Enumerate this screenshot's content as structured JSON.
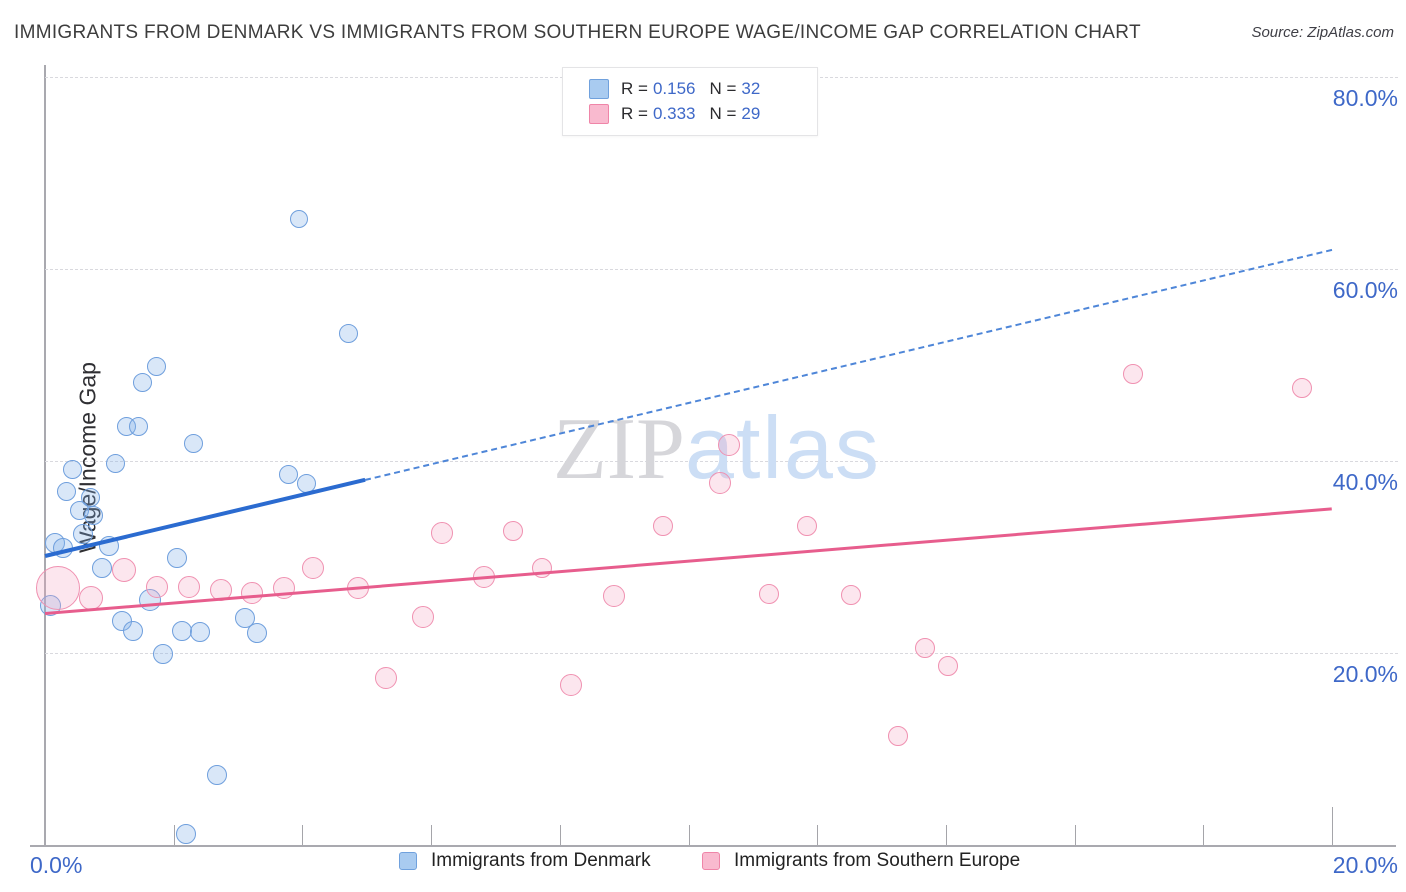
{
  "header": {
    "title": "IMMIGRANTS FROM DENMARK VS IMMIGRANTS FROM SOUTHERN EUROPE WAGE/INCOME GAP CORRELATION CHART",
    "source": "Source: ZipAtlas.com"
  },
  "watermark": {
    "zip": "ZIP",
    "atlas": "atlas"
  },
  "legend_box": {
    "rows": [
      {
        "r_label": "R =",
        "r_value": "0.156",
        "n_label": "N =",
        "n_value": "32",
        "swatch_fill": "#a9cbf0",
        "swatch_border": "#70a1dd"
      },
      {
        "r_label": "R =",
        "r_value": "0.333",
        "n_label": "N =",
        "n_value": "29",
        "swatch_fill": "#f9bacf",
        "swatch_border": "#ef85a8"
      }
    ]
  },
  "y_axis": {
    "title": "Wage/Income Gap",
    "tick_labels": [
      "80.0%",
      "60.0%",
      "40.0%",
      "20.0%"
    ],
    "tick_values": [
      80,
      60,
      40,
      20
    ],
    "label_color": "#3e68c8"
  },
  "x_axis": {
    "left_label": "0.0%",
    "right_label": "20.0%",
    "tick_values": [
      2,
      4,
      6,
      8,
      10,
      12,
      14,
      16,
      18,
      20
    ]
  },
  "bottom_legend": [
    {
      "label": "Immigrants from Denmark",
      "swatch_fill": "#a9cbf0",
      "swatch_border": "#70a1dd"
    },
    {
      "label": "Immigrants from Southern Europe",
      "swatch_fill": "#f9bacf",
      "swatch_border": "#ef85a8"
    }
  ],
  "chart_data": {
    "type": "scatter",
    "xlabel": "",
    "ylabel": "Wage/Income Gap",
    "xlim": [
      0,
      20
    ],
    "ylim": [
      0,
      81.25
    ],
    "grid": "horizontal-dashed",
    "legend_position": "top-center",
    "series": [
      {
        "name": "Immigrants from Denmark",
        "R": 0.156,
        "N": 32,
        "fill": "rgba(130,175,232,0.30)",
        "border": "#6f9fdd",
        "points": [
          {
            "x": 3.95,
            "y": 65.2,
            "r": 9
          },
          {
            "x": 4.71,
            "y": 53.3,
            "r": 9.5
          },
          {
            "x": 1.73,
            "y": 49.8,
            "r": 9.5
          },
          {
            "x": 1.52,
            "y": 48.2,
            "r": 9.5
          },
          {
            "x": 1.27,
            "y": 43.6,
            "r": 9.5
          },
          {
            "x": 1.46,
            "y": 43.6,
            "r": 9.5
          },
          {
            "x": 2.3,
            "y": 41.8,
            "r": 9.5
          },
          {
            "x": 1.09,
            "y": 39.7,
            "r": 9.5
          },
          {
            "x": 0.42,
            "y": 39.1,
            "r": 9.5
          },
          {
            "x": 3.78,
            "y": 38.6,
            "r": 9.5
          },
          {
            "x": 4.07,
            "y": 37.7,
            "r": 9.5
          },
          {
            "x": 0.33,
            "y": 36.8,
            "r": 9.5
          },
          {
            "x": 0.71,
            "y": 36.2,
            "r": 9.5
          },
          {
            "x": 0.54,
            "y": 34.8,
            "r": 9.5
          },
          {
            "x": 0.75,
            "y": 34.3,
            "r": 9.5
          },
          {
            "x": 0.59,
            "y": 32.4,
            "r": 10
          },
          {
            "x": 0.16,
            "y": 31.5,
            "r": 10
          },
          {
            "x": 0.28,
            "y": 30.9,
            "r": 10
          },
          {
            "x": 0.99,
            "y": 31.1,
            "r": 10
          },
          {
            "x": 0.89,
            "y": 28.9,
            "r": 10
          },
          {
            "x": 2.05,
            "y": 29.9,
            "r": 10
          },
          {
            "x": 0.08,
            "y": 25.0,
            "r": 10.5
          },
          {
            "x": 1.63,
            "y": 25.5,
            "r": 11
          },
          {
            "x": 1.2,
            "y": 23.3,
            "r": 10
          },
          {
            "x": 1.37,
            "y": 22.3,
            "r": 10
          },
          {
            "x": 2.13,
            "y": 22.3,
            "r": 10
          },
          {
            "x": 2.41,
            "y": 22.2,
            "r": 10
          },
          {
            "x": 1.83,
            "y": 19.9,
            "r": 10
          },
          {
            "x": 3.11,
            "y": 23.6,
            "r": 10
          },
          {
            "x": 3.3,
            "y": 22.1,
            "r": 10
          },
          {
            "x": 2.67,
            "y": 7.3,
            "r": 10
          },
          {
            "x": 2.19,
            "y": 1.1,
            "r": 10
          }
        ],
        "trend": {
          "x1": 0,
          "y1": 30.1,
          "x2": 20,
          "y2": 62.0,
          "solid_to_x": 4.97,
          "solid_color": "#2b6bd0",
          "dash_color": "#4e86d8"
        }
      },
      {
        "name": "Immigrants from Southern Europe",
        "R": 0.333,
        "N": 29,
        "fill": "rgba(246,164,195,0.28)",
        "border": "#f091b1",
        "points": [
          {
            "x": 0.2,
            "y": 26.8,
            "r": 22
          },
          {
            "x": 0.72,
            "y": 25.7,
            "r": 12
          },
          {
            "x": 1.23,
            "y": 28.6,
            "r": 12
          },
          {
            "x": 1.74,
            "y": 26.9,
            "r": 11
          },
          {
            "x": 2.24,
            "y": 26.9,
            "r": 11
          },
          {
            "x": 2.74,
            "y": 26.6,
            "r": 11
          },
          {
            "x": 3.22,
            "y": 26.3,
            "r": 11
          },
          {
            "x": 3.71,
            "y": 26.8,
            "r": 11
          },
          {
            "x": 4.17,
            "y": 28.9,
            "r": 11
          },
          {
            "x": 4.86,
            "y": 26.8,
            "r": 11
          },
          {
            "x": 5.87,
            "y": 23.8,
            "r": 11
          },
          {
            "x": 5.3,
            "y": 17.4,
            "r": 11
          },
          {
            "x": 6.17,
            "y": 32.5,
            "r": 11
          },
          {
            "x": 6.82,
            "y": 27.9,
            "r": 11
          },
          {
            "x": 7.27,
            "y": 32.7,
            "r": 10
          },
          {
            "x": 7.72,
            "y": 28.9,
            "r": 10
          },
          {
            "x": 8.17,
            "y": 16.7,
            "r": 11
          },
          {
            "x": 8.84,
            "y": 25.9,
            "r": 11
          },
          {
            "x": 9.6,
            "y": 33.2,
            "r": 10
          },
          {
            "x": 10.49,
            "y": 37.7,
            "r": 11
          },
          {
            "x": 10.63,
            "y": 41.7,
            "r": 11
          },
          {
            "x": 11.25,
            "y": 26.1,
            "r": 10
          },
          {
            "x": 11.84,
            "y": 33.2,
            "r": 10
          },
          {
            "x": 12.52,
            "y": 26.0,
            "r": 10
          },
          {
            "x": 13.67,
            "y": 20.5,
            "r": 10
          },
          {
            "x": 14.03,
            "y": 18.6,
            "r": 10
          },
          {
            "x": 13.25,
            "y": 11.4,
            "r": 10
          },
          {
            "x": 16.9,
            "y": 49.1,
            "r": 10
          },
          {
            "x": 19.54,
            "y": 47.6,
            "r": 10
          }
        ],
        "trend": {
          "x1": 0,
          "y1": 24.1,
          "x2": 20,
          "y2": 35.0,
          "solid_color": "#e75d8d"
        }
      }
    ]
  }
}
